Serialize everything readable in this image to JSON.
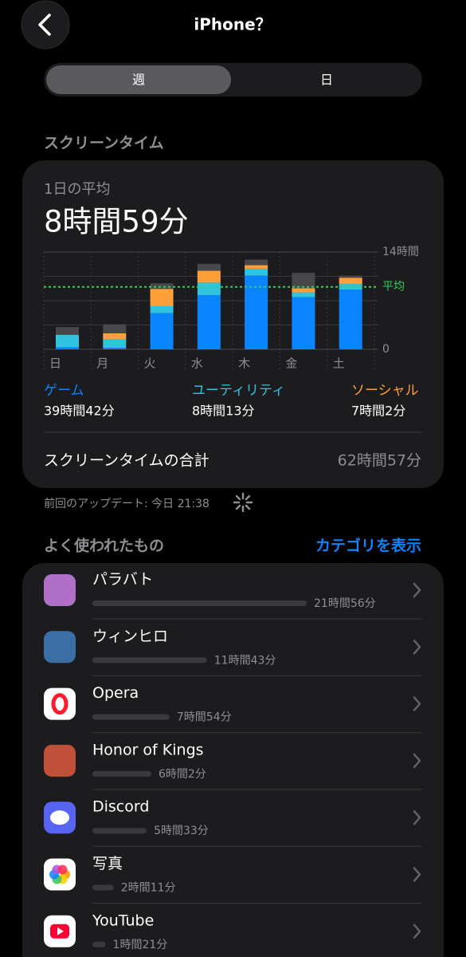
{
  "header": {
    "title": "iPhone？"
  },
  "segments": {
    "options": [
      "週",
      "日"
    ],
    "selected": 0
  },
  "screen_time": {
    "section_title": "スクリーンタイム",
    "average_label": "1日の平均",
    "average_text": "8時間59分",
    "total_label": "スクリーンタイムの合計",
    "total_value": "62時間57分",
    "last_update": "前回のアップデート: 今日 21:38"
  },
  "chart_data": {
    "type": "stacked-bar",
    "categories": [
      "日",
      "月",
      "火",
      "水",
      "木",
      "金",
      "土"
    ],
    "series": [
      {
        "name": "ゲーム",
        "color": "#0a84ff",
        "total": "39時間42分",
        "values": [
          0.3,
          0.2,
          5.2,
          7.8,
          10.6,
          7.5,
          8.6
        ]
      },
      {
        "name": "ユーティリティ",
        "color": "#30c4e0",
        "total": "8時間13分",
        "values": [
          1.8,
          1.2,
          1.0,
          1.8,
          1.0,
          0.7,
          0.8
        ]
      },
      {
        "name": "ソーシャル",
        "color": "#ff9f3a",
        "total": "7時間2分",
        "values": [
          0,
          0.9,
          2.5,
          1.7,
          0.5,
          0.6,
          0.9
        ]
      },
      {
        "color": "#48484a",
        "values": [
          1.1,
          1.3,
          0.8,
          1.0,
          0.8,
          2.2,
          0.3
        ]
      }
    ],
    "ylim": [
      0,
      14
    ],
    "yticks": [
      0,
      {
        "value": 14,
        "label": "14時間"
      }
    ],
    "minor_gridlines": [
      3.5,
      7,
      10.5
    ],
    "average": {
      "value": 8.98,
      "label": "平均",
      "color": "#30d158"
    },
    "grid": true
  },
  "most_used": {
    "title": "よく使われたもの",
    "link": "カテゴリを表示",
    "apps": [
      {
        "name": "パラバト",
        "time": "21時間56分",
        "hours": 21.93
      },
      {
        "name": "ウィンヒロ",
        "time": "11時間43分",
        "hours": 11.72
      },
      {
        "name": "Opera",
        "time": "7時間54分",
        "hours": 7.9
      },
      {
        "name": "Honor of Kings",
        "time": "6時間2分",
        "hours": 6.03
      },
      {
        "name": "Discord",
        "time": "5時間33分",
        "hours": 5.55
      },
      {
        "name": "写真",
        "time": "2時間11分",
        "hours": 2.18
      },
      {
        "name": "YouTube",
        "time": "1時間21分",
        "hours": 1.35
      }
    ]
  }
}
